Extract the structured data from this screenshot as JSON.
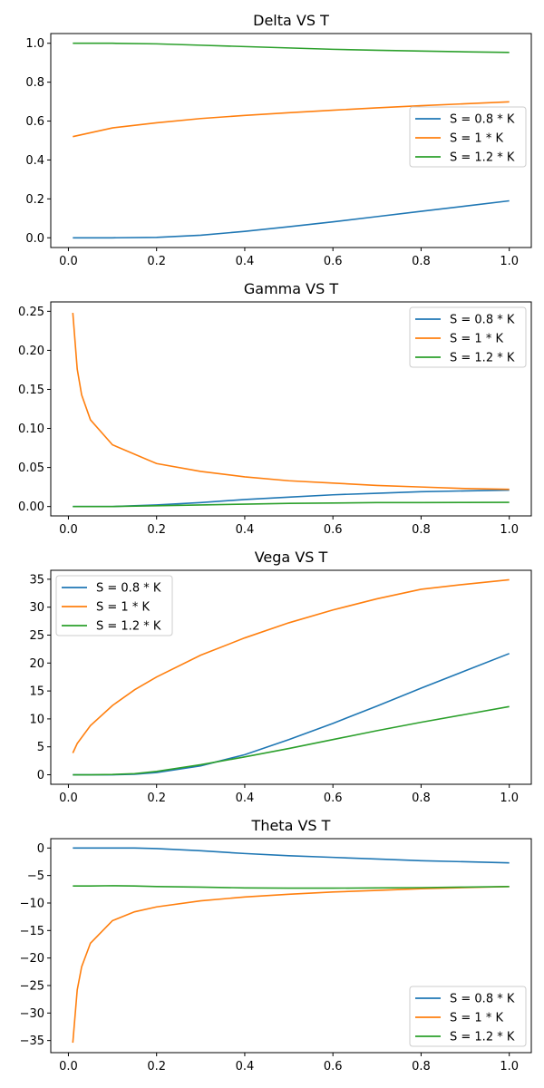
{
  "chart_data": [
    {
      "type": "line",
      "title": "Delta VS T",
      "xlim": [
        -0.04,
        1.05
      ],
      "ylim": [
        -0.05,
        1.05
      ],
      "xticks": [
        0.0,
        0.2,
        0.4,
        0.6,
        0.8,
        1.0
      ],
      "yticks": [
        0.0,
        0.2,
        0.4,
        0.6,
        0.8,
        1.0
      ],
      "xtick_labels": [
        "0.0",
        "0.2",
        "0.4",
        "0.6",
        "0.8",
        "1.0"
      ],
      "ytick_labels": [
        "0.0",
        "0.2",
        "0.4",
        "0.6",
        "0.8",
        "1.0"
      ],
      "legend_loc": "center-right",
      "x": [
        0.01,
        0.1,
        0.2,
        0.3,
        0.4,
        0.5,
        0.6,
        0.7,
        0.8,
        0.9,
        1.0
      ],
      "series": [
        {
          "name": "S = 0.8 * K",
          "color": "#1f77b4",
          "values": [
            0.0,
            0.0,
            0.002,
            0.013,
            0.033,
            0.057,
            0.082,
            0.109,
            0.136,
            0.163,
            0.19
          ]
        },
        {
          "name": "S = 1 * K",
          "color": "#ff7f0e",
          "values": [
            0.52,
            0.565,
            0.591,
            0.613,
            0.629,
            0.643,
            0.656,
            0.668,
            0.679,
            0.689,
            0.699
          ]
        },
        {
          "name": "S = 1.2 * K",
          "color": "#2ca02c",
          "values": [
            1.0,
            1.0,
            0.997,
            0.99,
            0.983,
            0.976,
            0.969,
            0.964,
            0.96,
            0.956,
            0.953
          ]
        }
      ]
    },
    {
      "type": "line",
      "title": "Gamma VS T",
      "xlim": [
        -0.04,
        1.05
      ],
      "ylim": [
        -0.012,
        0.262
      ],
      "xticks": [
        0.0,
        0.2,
        0.4,
        0.6,
        0.8,
        1.0
      ],
      "yticks": [
        0.0,
        0.05,
        0.1,
        0.15,
        0.2,
        0.25
      ],
      "xtick_labels": [
        "0.0",
        "0.2",
        "0.4",
        "0.6",
        "0.8",
        "1.0"
      ],
      "ytick_labels": [
        "0.00",
        "0.05",
        "0.10",
        "0.15",
        "0.20",
        "0.25"
      ],
      "legend_loc": "upper-right",
      "x": [
        0.01,
        0.02,
        0.03,
        0.05,
        0.1,
        0.2,
        0.3,
        0.4,
        0.5,
        0.6,
        0.7,
        0.8,
        0.9,
        1.0
      ],
      "series": [
        {
          "name": "S = 0.8 * K",
          "color": "#1f77b4",
          "values": [
            0.0,
            0.0,
            0.0,
            0.0,
            0.0,
            0.002,
            0.005,
            0.009,
            0.012,
            0.015,
            0.017,
            0.019,
            0.02,
            0.021
          ]
        },
        {
          "name": "S = 1 * K",
          "color": "#ff7f0e",
          "values": [
            0.248,
            0.176,
            0.143,
            0.111,
            0.079,
            0.055,
            0.045,
            0.038,
            0.033,
            0.03,
            0.027,
            0.025,
            0.023,
            0.022
          ]
        },
        {
          "name": "S = 1.2 * K",
          "color": "#2ca02c",
          "values": [
            0.0,
            0.0,
            0.0,
            0.0,
            0.0,
            0.001,
            0.002,
            0.003,
            0.004,
            0.0045,
            0.005,
            0.005,
            0.0052,
            0.0053
          ]
        }
      ]
    },
    {
      "type": "line",
      "title": "Vega VS T",
      "xlim": [
        -0.04,
        1.05
      ],
      "ylim": [
        -1.7,
        36.6
      ],
      "xticks": [
        0.0,
        0.2,
        0.4,
        0.6,
        0.8,
        1.0
      ],
      "yticks": [
        0,
        5,
        10,
        15,
        20,
        25,
        30,
        35
      ],
      "xtick_labels": [
        "0.0",
        "0.2",
        "0.4",
        "0.6",
        "0.8",
        "1.0"
      ],
      "ytick_labels": [
        "0",
        "5",
        "10",
        "15",
        "20",
        "25",
        "30",
        "35"
      ],
      "legend_loc": "upper-left",
      "x": [
        0.01,
        0.02,
        0.05,
        0.1,
        0.15,
        0.2,
        0.3,
        0.4,
        0.5,
        0.6,
        0.7,
        0.8,
        0.9,
        1.0
      ],
      "series": [
        {
          "name": "S = 0.8 * K",
          "color": "#1f77b4",
          "values": [
            0.0,
            0.0,
            0.0,
            0.0,
            0.1,
            0.4,
            1.6,
            3.6,
            6.3,
            9.2,
            12.3,
            15.5,
            18.6,
            21.7
          ]
        },
        {
          "name": "S = 1 * K",
          "color": "#ff7f0e",
          "values": [
            3.9,
            5.6,
            8.8,
            12.4,
            15.2,
            17.5,
            21.4,
            24.5,
            27.2,
            29.5,
            31.5,
            33.2,
            34.1,
            34.9
          ]
        },
        {
          "name": "S = 1.2 * K",
          "color": "#2ca02c",
          "values": [
            0.0,
            0.0,
            0.0,
            0.05,
            0.2,
            0.6,
            1.8,
            3.2,
            4.7,
            6.3,
            7.9,
            9.4,
            10.8,
            12.2
          ]
        }
      ]
    },
    {
      "type": "line",
      "title": "Theta VS T",
      "xlim": [
        -0.04,
        1.05
      ],
      "ylim": [
        -37.2,
        1.7
      ],
      "xticks": [
        0.0,
        0.2,
        0.4,
        0.6,
        0.8,
        1.0
      ],
      "yticks": [
        0,
        -5,
        -10,
        -15,
        -20,
        -25,
        -30,
        -35
      ],
      "xtick_labels": [
        "0.0",
        "0.2",
        "0.4",
        "0.6",
        "0.8",
        "1.0"
      ],
      "ytick_labels": [
        "0",
        "−5",
        "−10",
        "−15",
        "−20",
        "−25",
        "−30",
        "−35"
      ],
      "legend_loc": "lower-right",
      "x": [
        0.01,
        0.02,
        0.03,
        0.05,
        0.1,
        0.15,
        0.2,
        0.3,
        0.4,
        0.5,
        0.6,
        0.7,
        0.8,
        0.9,
        1.0
      ],
      "series": [
        {
          "name": "S = 0.8 * K",
          "color": "#1f77b4",
          "values": [
            0.0,
            0.0,
            0.0,
            0.0,
            0.0,
            0.0,
            -0.1,
            -0.5,
            -1.0,
            -1.4,
            -1.7,
            -2.0,
            -2.3,
            -2.5,
            -2.7
          ]
        },
        {
          "name": "S = 1 * K",
          "color": "#ff7f0e",
          "values": [
            -35.4,
            -25.8,
            -21.6,
            -17.3,
            -13.2,
            -11.6,
            -10.7,
            -9.6,
            -8.9,
            -8.4,
            -8.0,
            -7.7,
            -7.4,
            -7.2,
            -7.0
          ]
        },
        {
          "name": "S = 1.2 * K",
          "color": "#2ca02c",
          "values": [
            -6.9,
            -6.9,
            -6.9,
            -6.9,
            -6.85,
            -6.9,
            -7.0,
            -7.1,
            -7.25,
            -7.3,
            -7.3,
            -7.25,
            -7.2,
            -7.1,
            -7.0
          ]
        }
      ]
    }
  ]
}
